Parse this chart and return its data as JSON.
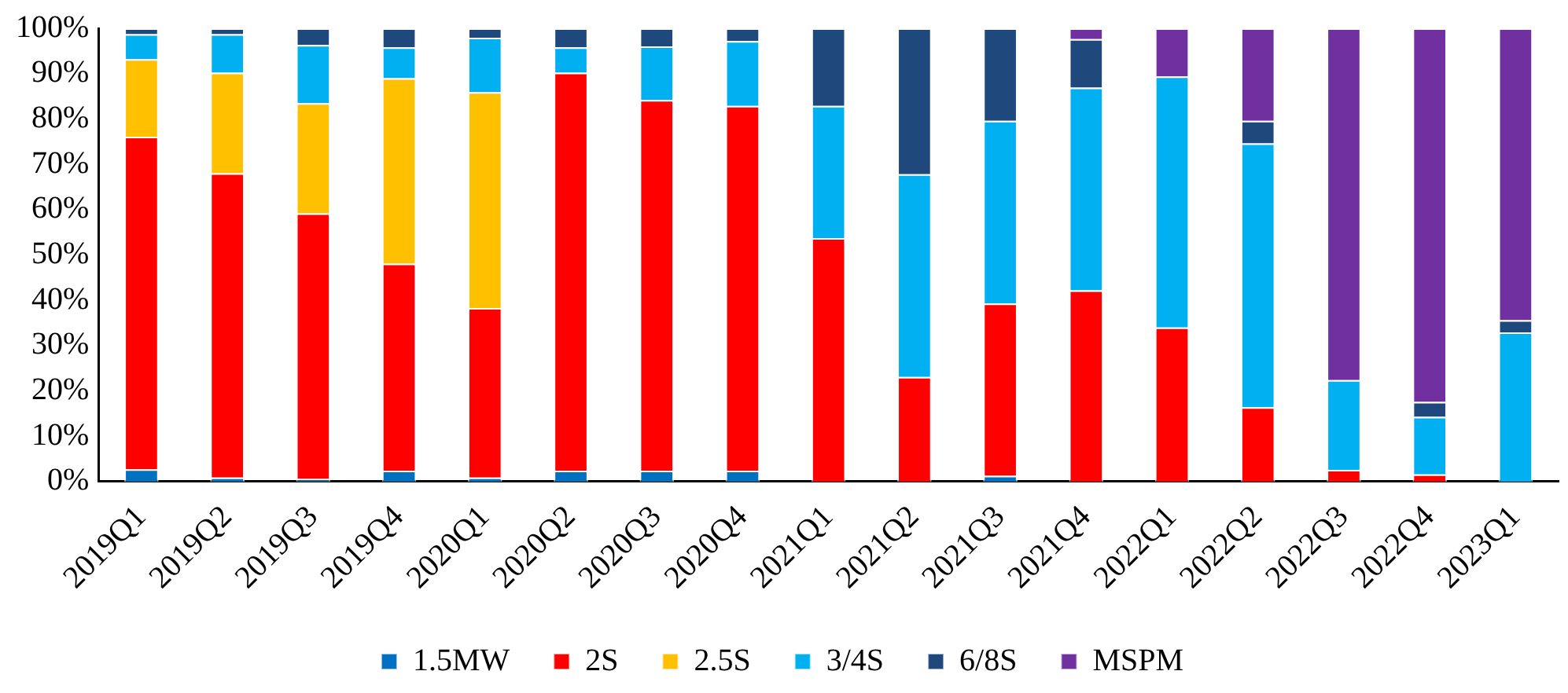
{
  "chart_data": {
    "type": "bar",
    "stacked": true,
    "legend": "bottom",
    "grid": false,
    "categories": [
      "2019Q1",
      "2019Q2",
      "2019Q3",
      "2019Q4",
      "2020Q1",
      "2020Q2",
      "2020Q3",
      "2020Q4",
      "2021Q1",
      "2021Q2",
      "2021Q3",
      "2021Q4",
      "2022Q1",
      "2022Q2",
      "2022Q3",
      "2022Q4",
      "2023Q1"
    ],
    "ylim": [
      0,
      100
    ],
    "yticks": [
      {
        "value": 0,
        "label": "0%"
      },
      {
        "value": 10,
        "label": "10%"
      },
      {
        "value": 20,
        "label": "20%"
      },
      {
        "value": 30,
        "label": "30%"
      },
      {
        "value": 40,
        "label": "40%"
      },
      {
        "value": 50,
        "label": "50%"
      },
      {
        "value": 60,
        "label": "60%"
      },
      {
        "value": 70,
        "label": "70%"
      },
      {
        "value": 80,
        "label": "80%"
      },
      {
        "value": 90,
        "label": "90%"
      },
      {
        "value": 100,
        "label": "100%"
      }
    ],
    "series": [
      {
        "name": "1.5MW",
        "color": "#0070c0",
        "values": [
          2.7,
          0.9,
          0.6,
          2.4,
          0.9,
          2.4,
          2.4,
          2.4,
          0,
          0,
          1.3,
          0,
          0,
          0,
          0,
          0,
          0
        ]
      },
      {
        "name": "2S",
        "color": "#ff0000",
        "values": [
          73.4,
          67.1,
          58.6,
          45.7,
          37.4,
          87.8,
          81.8,
          80.5,
          53.7,
          23.1,
          38.0,
          42.2,
          34.0,
          16.4,
          2.6,
          1.6,
          0
        ]
      },
      {
        "name": "2.5S",
        "color": "#ffc000",
        "values": [
          17.1,
          22.2,
          24.3,
          40.9,
          47.6,
          0,
          0,
          0,
          0,
          0,
          0,
          0,
          0,
          0,
          0,
          0,
          0
        ]
      },
      {
        "name": "3/4S",
        "color": "#00b0f0",
        "values": [
          5.5,
          8.5,
          12.8,
          6.8,
          12.0,
          5.6,
          11.8,
          14.3,
          29.2,
          44.7,
          40.3,
          44.7,
          55.4,
          58.2,
          19.8,
          12.7,
          32.9
        ]
      },
      {
        "name": "6/8S",
        "color": "#1f497d",
        "values": [
          1.3,
          1.3,
          3.7,
          4.2,
          2.1,
          4.2,
          4.0,
          2.8,
          17.1,
          32.2,
          20.4,
          10.7,
          0,
          5.0,
          0,
          3.3,
          2.7
        ]
      },
      {
        "name": "MSPM",
        "color": "#7030a0",
        "values": [
          0,
          0,
          0,
          0,
          0,
          0,
          0,
          0,
          0,
          0,
          0,
          2.4,
          10.6,
          20.4,
          77.6,
          82.4,
          64.4
        ]
      }
    ]
  }
}
